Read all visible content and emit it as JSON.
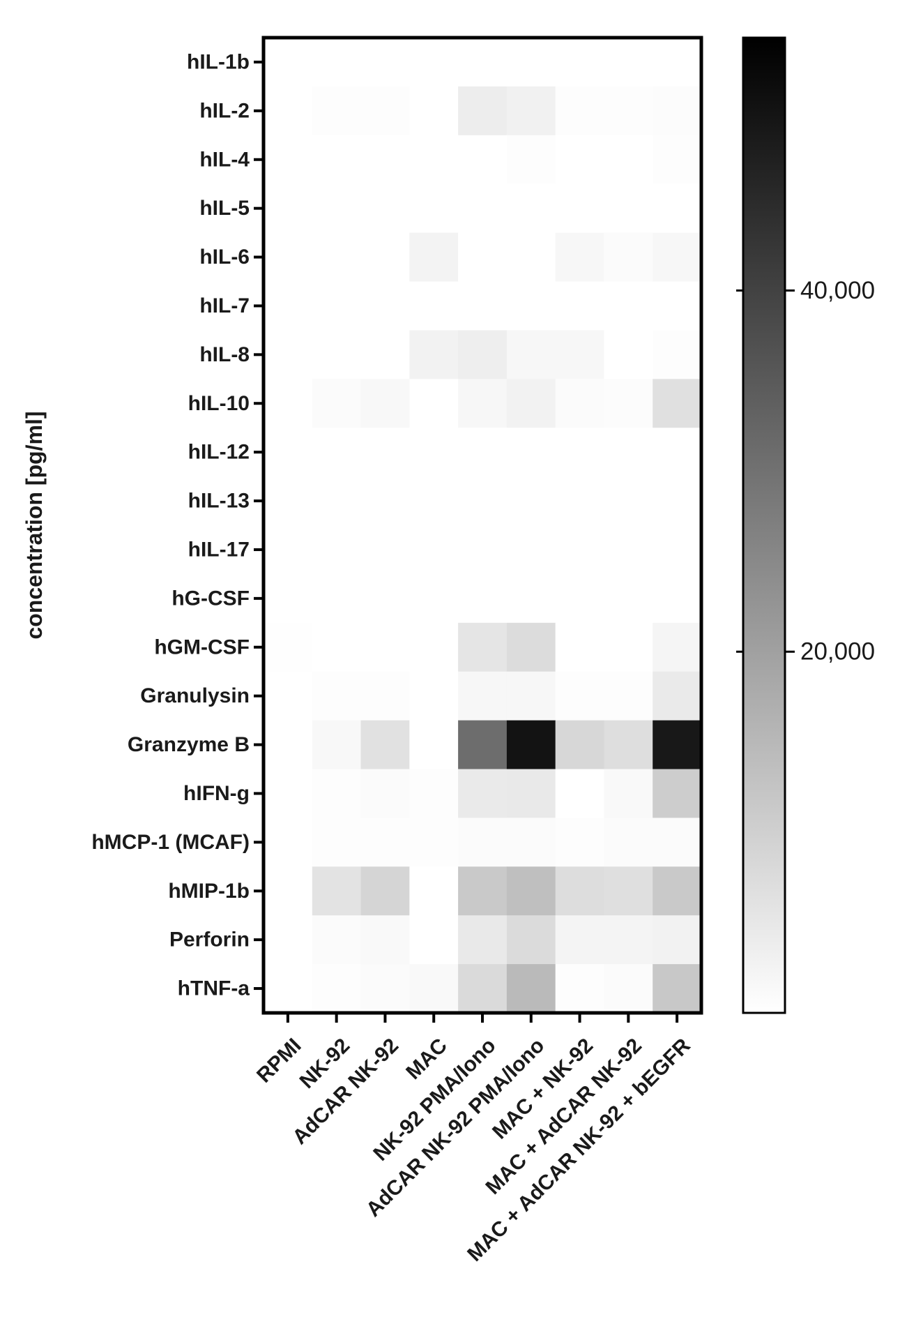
{
  "chart_data": {
    "type": "heatmap",
    "ylabel": "concentration [pg/ml]",
    "rows": [
      "hIL-1b",
      "hIL-2",
      "hIL-4",
      "hIL-5",
      "hIL-6",
      "hIL-7",
      "hIL-8",
      "hIL-10",
      "hIL-12",
      "hIL-13",
      "hIL-17",
      "hG-CSF",
      "hGM-CSF",
      "Granulysin",
      "Granzyme B",
      "hIFN-g",
      "hMCP-1 (MCAF)",
      "hMIP-1b",
      "Perforin",
      "hTNF-a"
    ],
    "columns": [
      "RPMI",
      "NK-92",
      "AdCAR NK-92",
      "MAC",
      "NK-92 PMA/Iono",
      "AdCAR NK-92 PMA/Iono",
      "MAC + NK-92",
      "MAC + AdCAR NK-92",
      "MAC + AdCAR NK-92 + bEGFR"
    ],
    "values": [
      [
        0,
        0,
        0,
        0,
        0,
        0,
        0,
        0,
        0
      ],
      [
        0,
        400,
        400,
        0,
        3800,
        3000,
        400,
        400,
        700
      ],
      [
        0,
        0,
        0,
        0,
        0,
        400,
        0,
        0,
        400
      ],
      [
        0,
        0,
        0,
        0,
        0,
        0,
        0,
        0,
        0
      ],
      [
        0,
        0,
        0,
        2600,
        0,
        0,
        1800,
        800,
        1600
      ],
      [
        0,
        0,
        0,
        0,
        0,
        0,
        0,
        0,
        0
      ],
      [
        0,
        0,
        0,
        2700,
        3700,
        1600,
        1700,
        0,
        400
      ],
      [
        0,
        900,
        1500,
        0,
        1800,
        2700,
        800,
        700,
        6600
      ],
      [
        0,
        0,
        0,
        0,
        0,
        0,
        0,
        0,
        0
      ],
      [
        0,
        0,
        0,
        0,
        0,
        0,
        0,
        0,
        0
      ],
      [
        0,
        0,
        0,
        0,
        0,
        0,
        0,
        0,
        0
      ],
      [
        0,
        0,
        0,
        0,
        0,
        0,
        0,
        0,
        0
      ],
      [
        200,
        0,
        0,
        0,
        5600,
        7500,
        0,
        0,
        2200
      ],
      [
        0,
        400,
        400,
        0,
        1600,
        1600,
        400,
        400,
        4500
      ],
      [
        0,
        1500,
        6300,
        0,
        31000,
        50000,
        8400,
        7000,
        49000
      ],
      [
        0,
        400,
        800,
        400,
        4500,
        4700,
        0,
        1200,
        10500
      ],
      [
        0,
        400,
        400,
        400,
        800,
        800,
        400,
        800,
        800
      ],
      [
        0,
        6000,
        9000,
        0,
        11500,
        13500,
        7200,
        6800,
        11500
      ],
      [
        0,
        800,
        1200,
        0,
        4700,
        7600,
        2400,
        2400,
        2800
      ],
      [
        0,
        400,
        800,
        1200,
        7800,
        14600,
        400,
        800,
        11700
      ]
    ],
    "colorbar": {
      "min": 0,
      "max": 54000,
      "ticks": [
        20000,
        40000
      ],
      "tick_labels": [
        "20,000",
        "40,000"
      ],
      "colors": [
        "#ffffff",
        "#000000"
      ]
    },
    "grid": false
  }
}
